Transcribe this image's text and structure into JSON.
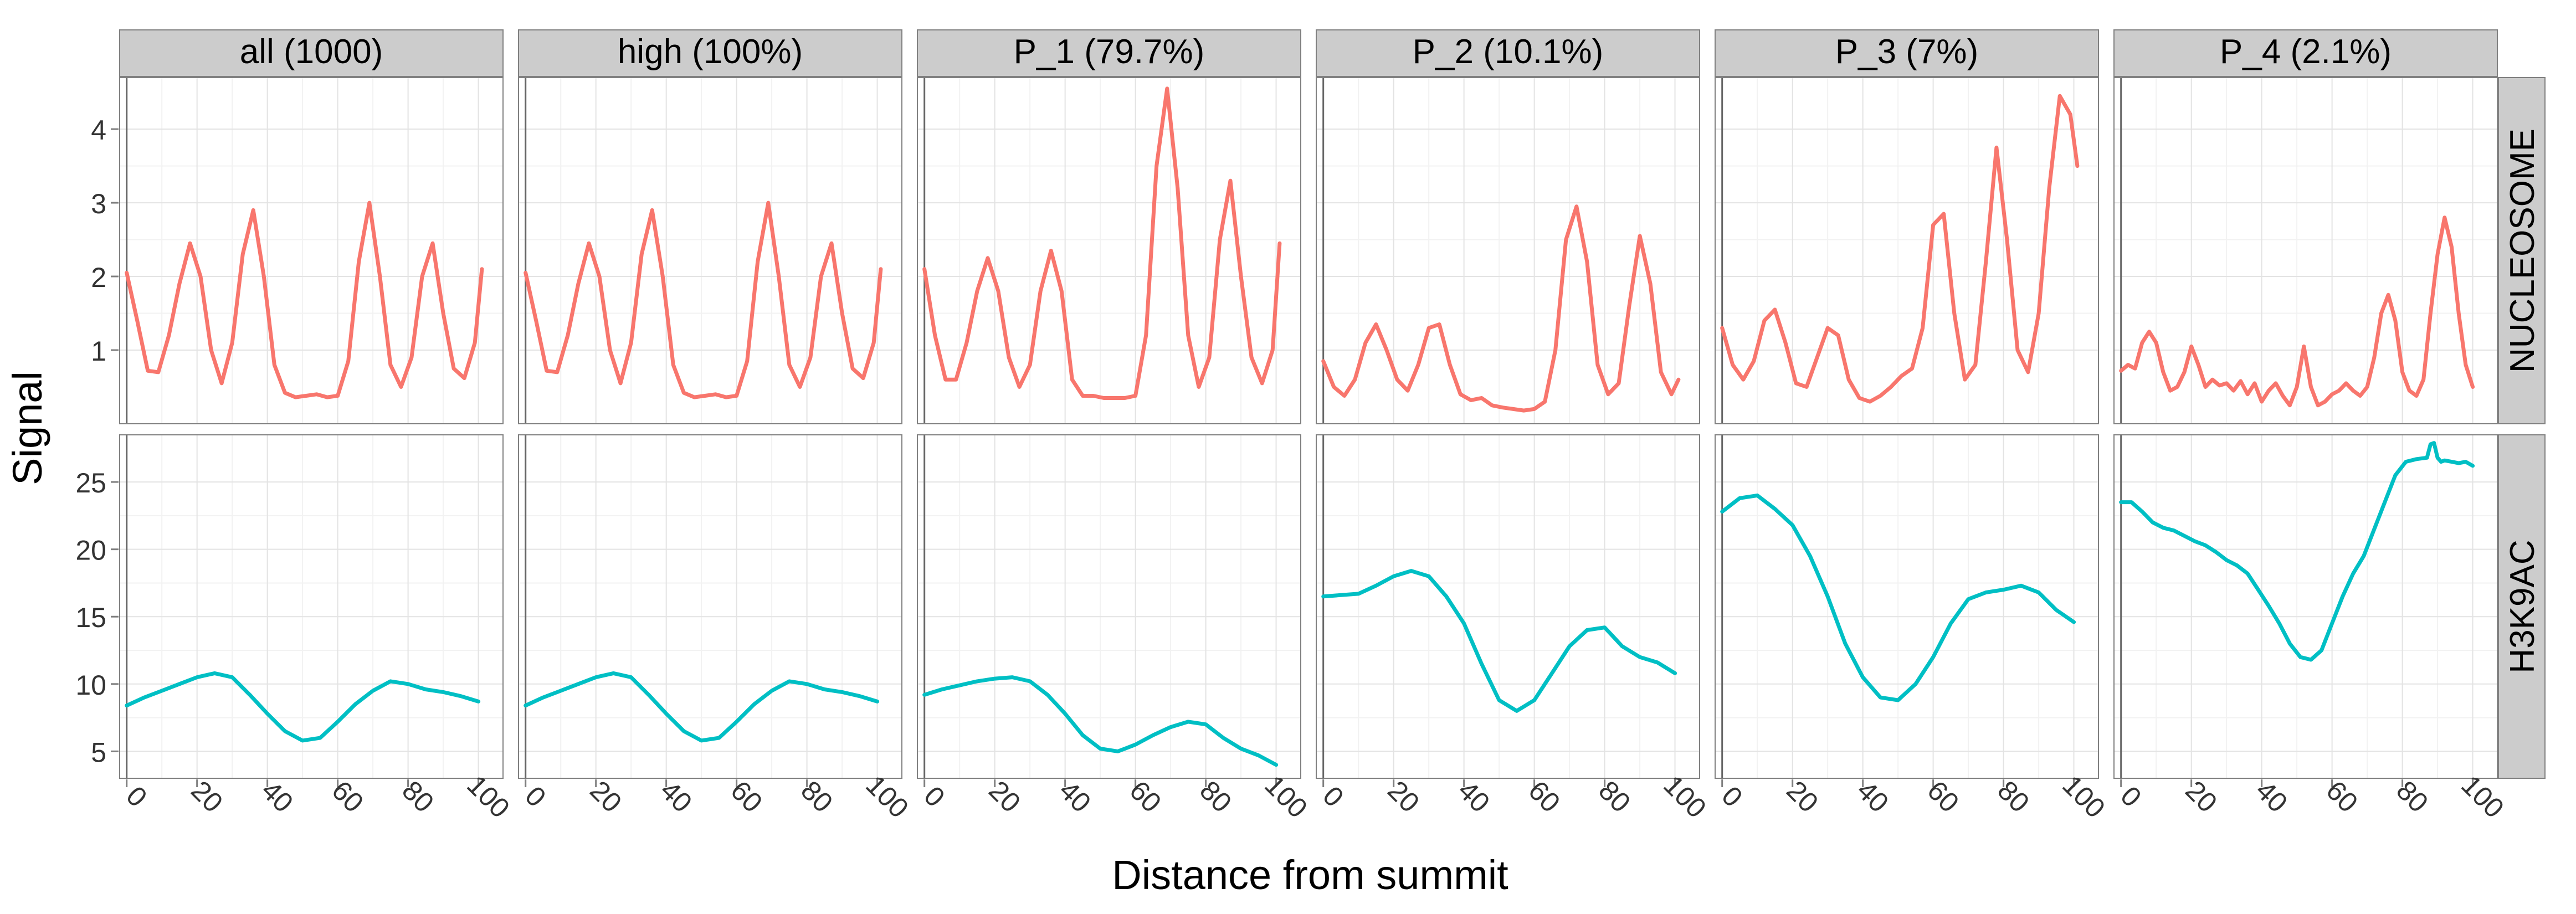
{
  "chart_data": {
    "type": "line",
    "xlabel": "Distance from summit",
    "ylabel": "Signal",
    "x_ticks": [
      "0",
      "20",
      "40",
      "60",
      "80",
      "100"
    ],
    "xlim": [
      -2,
      107
    ],
    "panels": [
      "all (1000)",
      "high (100%)",
      "P_1 (79.7%)",
      "P_2 (10.1%)",
      "P_3 (7%)",
      "P_4 (2.1%)"
    ],
    "rows": [
      {
        "name": "NUCLEOSOME",
        "color": "#f8766d",
        "ylim": [
          0,
          4.7
        ],
        "y_ticks": [
          1,
          2,
          3,
          4
        ],
        "series": [
          {
            "panel": "all (1000)",
            "x": [
              0,
              3,
              6,
              9,
              12,
              15,
              18,
              21,
              24,
              27,
              30,
              33,
              36,
              39,
              42,
              45,
              48,
              51,
              54,
              57,
              60,
              63,
              66,
              69,
              72,
              75,
              78,
              81,
              84,
              87,
              90,
              93,
              96,
              99,
              101
            ],
            "y": [
              2.05,
              1.4,
              0.72,
              0.7,
              1.2,
              1.9,
              2.45,
              2.0,
              1.0,
              0.55,
              1.1,
              2.3,
              2.9,
              2.0,
              0.8,
              0.42,
              0.36,
              0.38,
              0.4,
              0.36,
              0.38,
              0.85,
              2.2,
              3.0,
              2.0,
              0.8,
              0.5,
              0.9,
              2.0,
              2.45,
              1.5,
              0.75,
              0.62,
              1.1,
              2.1
            ]
          },
          {
            "panel": "high (100%)",
            "x": [
              0,
              3,
              6,
              9,
              12,
              15,
              18,
              21,
              24,
              27,
              30,
              33,
              36,
              39,
              42,
              45,
              48,
              51,
              54,
              57,
              60,
              63,
              66,
              69,
              72,
              75,
              78,
              81,
              84,
              87,
              90,
              93,
              96,
              99,
              101
            ],
            "y": [
              2.05,
              1.4,
              0.72,
              0.7,
              1.2,
              1.9,
              2.45,
              2.0,
              1.0,
              0.55,
              1.1,
              2.3,
              2.9,
              2.0,
              0.8,
              0.42,
              0.36,
              0.38,
              0.4,
              0.36,
              0.38,
              0.85,
              2.2,
              3.0,
              2.0,
              0.8,
              0.5,
              0.9,
              2.0,
              2.45,
              1.5,
              0.75,
              0.62,
              1.1,
              2.1
            ]
          },
          {
            "panel": "P_1 (79.7%)",
            "x": [
              0,
              3,
              6,
              9,
              12,
              15,
              18,
              21,
              24,
              27,
              30,
              33,
              36,
              39,
              42,
              45,
              48,
              51,
              54,
              57,
              60,
              63,
              66,
              69,
              72,
              75,
              78,
              81,
              84,
              87,
              90,
              93,
              96,
              99,
              101
            ],
            "y": [
              2.1,
              1.2,
              0.6,
              0.6,
              1.1,
              1.8,
              2.25,
              1.8,
              0.9,
              0.5,
              0.8,
              1.8,
              2.35,
              1.8,
              0.6,
              0.38,
              0.38,
              0.35,
              0.35,
              0.35,
              0.38,
              1.2,
              3.5,
              4.55,
              3.2,
              1.2,
              0.5,
              0.9,
              2.5,
              3.3,
              2.0,
              0.9,
              0.55,
              1.0,
              2.45
            ]
          },
          {
            "panel": "P_2 (10.1%)",
            "x": [
              0,
              3,
              6,
              9,
              12,
              15,
              18,
              21,
              24,
              27,
              30,
              33,
              36,
              39,
              42,
              45,
              48,
              51,
              54,
              57,
              60,
              63,
              66,
              69,
              72,
              75,
              78,
              81,
              84,
              87,
              90,
              93,
              96,
              99,
              101
            ],
            "y": [
              0.85,
              0.5,
              0.38,
              0.6,
              1.1,
              1.35,
              1.0,
              0.6,
              0.45,
              0.8,
              1.3,
              1.35,
              0.8,
              0.4,
              0.32,
              0.35,
              0.25,
              0.22,
              0.2,
              0.18,
              0.2,
              0.3,
              1.0,
              2.5,
              2.95,
              2.2,
              0.8,
              0.4,
              0.55,
              1.6,
              2.55,
              1.9,
              0.7,
              0.4,
              0.6
            ]
          },
          {
            "panel": "P_3 (7%)",
            "x": [
              0,
              3,
              6,
              9,
              12,
              15,
              18,
              21,
              24,
              27,
              30,
              33,
              36,
              39,
              42,
              45,
              48,
              51,
              54,
              57,
              60,
              63,
              66,
              69,
              72,
              75,
              78,
              81,
              84,
              87,
              90,
              93,
              96,
              99,
              101
            ],
            "y": [
              1.3,
              0.8,
              0.6,
              0.85,
              1.4,
              1.55,
              1.1,
              0.55,
              0.5,
              0.9,
              1.3,
              1.2,
              0.6,
              0.35,
              0.3,
              0.38,
              0.5,
              0.65,
              0.75,
              1.3,
              2.7,
              2.85,
              1.5,
              0.6,
              0.8,
              2.2,
              3.75,
              2.5,
              1.0,
              0.7,
              1.5,
              3.2,
              4.45,
              4.2,
              3.5
            ]
          },
          {
            "panel": "P_4 (2.1%)",
            "x": [
              0,
              2,
              4,
              6,
              8,
              10,
              12,
              14,
              16,
              18,
              20,
              22,
              24,
              26,
              28,
              30,
              32,
              34,
              36,
              38,
              40,
              42,
              44,
              46,
              48,
              50,
              52,
              54,
              56,
              58,
              60,
              62,
              64,
              66,
              68,
              70,
              72,
              74,
              76,
              78,
              80,
              82,
              84,
              86,
              88,
              90,
              92,
              94,
              96,
              98,
              100
            ],
            "y": [
              0.72,
              0.8,
              0.75,
              1.1,
              1.25,
              1.1,
              0.7,
              0.45,
              0.5,
              0.7,
              1.05,
              0.8,
              0.5,
              0.6,
              0.52,
              0.55,
              0.45,
              0.58,
              0.4,
              0.55,
              0.3,
              0.45,
              0.55,
              0.38,
              0.25,
              0.5,
              1.05,
              0.5,
              0.25,
              0.3,
              0.4,
              0.45,
              0.55,
              0.45,
              0.38,
              0.5,
              0.9,
              1.5,
              1.75,
              1.4,
              0.7,
              0.45,
              0.38,
              0.6,
              1.5,
              2.3,
              2.8,
              2.4,
              1.5,
              0.8,
              0.5
            ]
          }
        ]
      },
      {
        "name": "H3K9AC",
        "color": "#00bfc4",
        "ylim": [
          3,
          28.5
        ],
        "y_ticks": [
          5,
          10,
          15,
          20,
          25
        ],
        "series": [
          {
            "panel": "all (1000)",
            "x": [
              0,
              5,
              10,
              15,
              20,
              25,
              30,
              35,
              40,
              45,
              50,
              55,
              60,
              65,
              70,
              75,
              80,
              85,
              90,
              95,
              100
            ],
            "y": [
              8.4,
              9.0,
              9.5,
              10.0,
              10.5,
              10.8,
              10.5,
              9.2,
              7.8,
              6.5,
              5.8,
              6.0,
              7.2,
              8.5,
              9.5,
              10.2,
              10.0,
              9.6,
              9.4,
              9.1,
              8.7
            ]
          },
          {
            "panel": "high (100%)",
            "x": [
              0,
              5,
              10,
              15,
              20,
              25,
              30,
              35,
              40,
              45,
              50,
              55,
              60,
              65,
              70,
              75,
              80,
              85,
              90,
              95,
              100
            ],
            "y": [
              8.4,
              9.0,
              9.5,
              10.0,
              10.5,
              10.8,
              10.5,
              9.2,
              7.8,
              6.5,
              5.8,
              6.0,
              7.2,
              8.5,
              9.5,
              10.2,
              10.0,
              9.6,
              9.4,
              9.1,
              8.7
            ]
          },
          {
            "panel": "P_1 (79.7%)",
            "x": [
              0,
              5,
              10,
              15,
              20,
              25,
              30,
              35,
              40,
              45,
              50,
              55,
              60,
              65,
              70,
              75,
              80,
              85,
              90,
              95,
              100
            ],
            "y": [
              9.2,
              9.6,
              9.9,
              10.2,
              10.4,
              10.5,
              10.2,
              9.2,
              7.8,
              6.2,
              5.2,
              5.0,
              5.5,
              6.2,
              6.8,
              7.2,
              7.0,
              6.0,
              5.2,
              4.7,
              4.0
            ]
          },
          {
            "panel": "P_2 (10.1%)",
            "x": [
              0,
              5,
              10,
              15,
              20,
              25,
              30,
              35,
              40,
              45,
              50,
              55,
              60,
              65,
              70,
              75,
              80,
              85,
              90,
              95,
              100
            ],
            "y": [
              16.5,
              16.6,
              16.7,
              17.3,
              18.0,
              18.4,
              18.0,
              16.5,
              14.5,
              11.5,
              8.8,
              8.0,
              8.8,
              10.8,
              12.8,
              14.0,
              14.2,
              12.8,
              12.0,
              11.6,
              10.8
            ]
          },
          {
            "panel": "P_3 (7%)",
            "x": [
              0,
              5,
              10,
              15,
              20,
              25,
              30,
              35,
              40,
              45,
              50,
              55,
              60,
              65,
              70,
              75,
              80,
              85,
              90,
              95,
              100
            ],
            "y": [
              22.8,
              23.8,
              24.0,
              23.0,
              21.8,
              19.5,
              16.5,
              13.0,
              10.5,
              9.0,
              8.8,
              10.0,
              12.0,
              14.5,
              16.3,
              16.8,
              17.0,
              17.3,
              16.8,
              15.5,
              14.6
            ]
          },
          {
            "panel": "P_4 (2.1%)",
            "x": [
              0,
              3,
              6,
              9,
              12,
              15,
              18,
              21,
              24,
              27,
              30,
              33,
              36,
              39,
              42,
              45,
              48,
              51,
              54,
              57,
              60,
              63,
              66,
              69,
              72,
              75,
              78,
              81,
              84,
              87,
              88,
              89,
              90,
              91,
              92,
              94,
              96,
              98,
              100
            ],
            "y": [
              23.5,
              23.5,
              22.8,
              22.0,
              21.6,
              21.4,
              21.0,
              20.6,
              20.3,
              19.8,
              19.2,
              18.8,
              18.2,
              17.0,
              15.8,
              14.5,
              13.0,
              12.0,
              11.8,
              12.5,
              14.5,
              16.5,
              18.2,
              19.5,
              21.5,
              23.5,
              25.5,
              26.5,
              26.7,
              26.8,
              27.8,
              27.9,
              26.8,
              26.5,
              26.6,
              26.5,
              26.4,
              26.5,
              26.2
            ]
          }
        ]
      }
    ]
  }
}
